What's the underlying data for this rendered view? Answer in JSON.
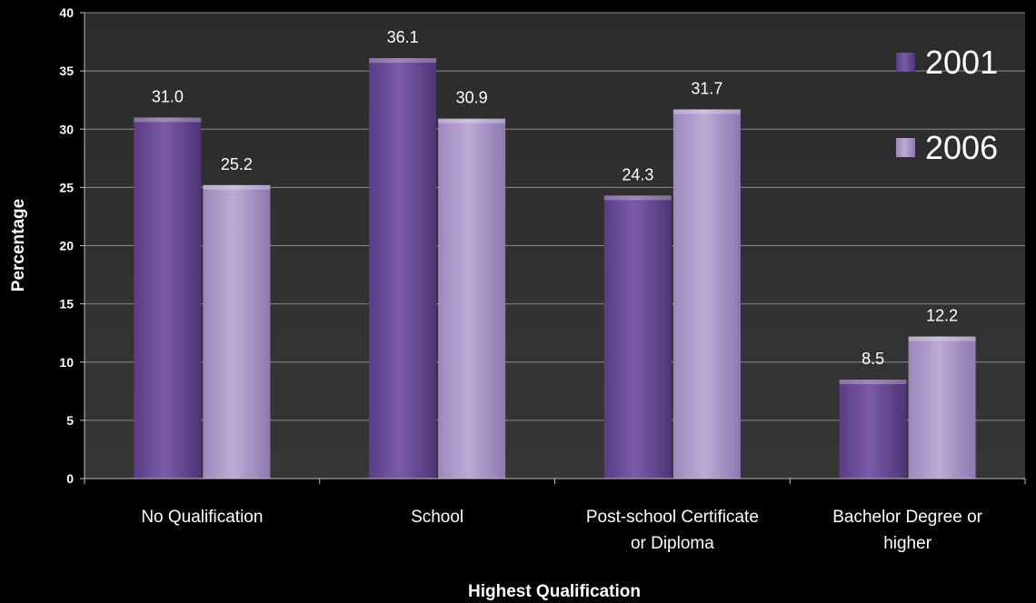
{
  "chart_data": {
    "type": "bar",
    "categories": [
      [
        "No Qualification"
      ],
      [
        "School"
      ],
      [
        "Post-school Certificate",
        "or Diploma"
      ],
      [
        "Bachelor Degree or",
        "higher"
      ]
    ],
    "series": [
      {
        "name": "2001",
        "values": [
          31.0,
          36.1,
          24.3,
          8.5
        ],
        "labels": [
          "31.0",
          "36.1",
          "24.3",
          "8.5"
        ],
        "color": "#7a5aa6"
      },
      {
        "name": "2006",
        "values": [
          25.2,
          30.9,
          31.7,
          12.2
        ],
        "labels": [
          "25.2",
          "30.9",
          "31.7",
          "12.2"
        ],
        "color": "#b3a1cd"
      }
    ],
    "title": "",
    "xlabel": "Highest Qualification",
    "ylabel": "Percentage",
    "ylim": [
      0,
      40
    ],
    "yticks": [
      "0",
      "5",
      "10",
      "15",
      "20",
      "25",
      "30",
      "35",
      "40"
    ],
    "grid": true,
    "legend_position": "top-right",
    "plot_background": "#2e2e2e",
    "gridline_color": "#8c8c8c"
  }
}
